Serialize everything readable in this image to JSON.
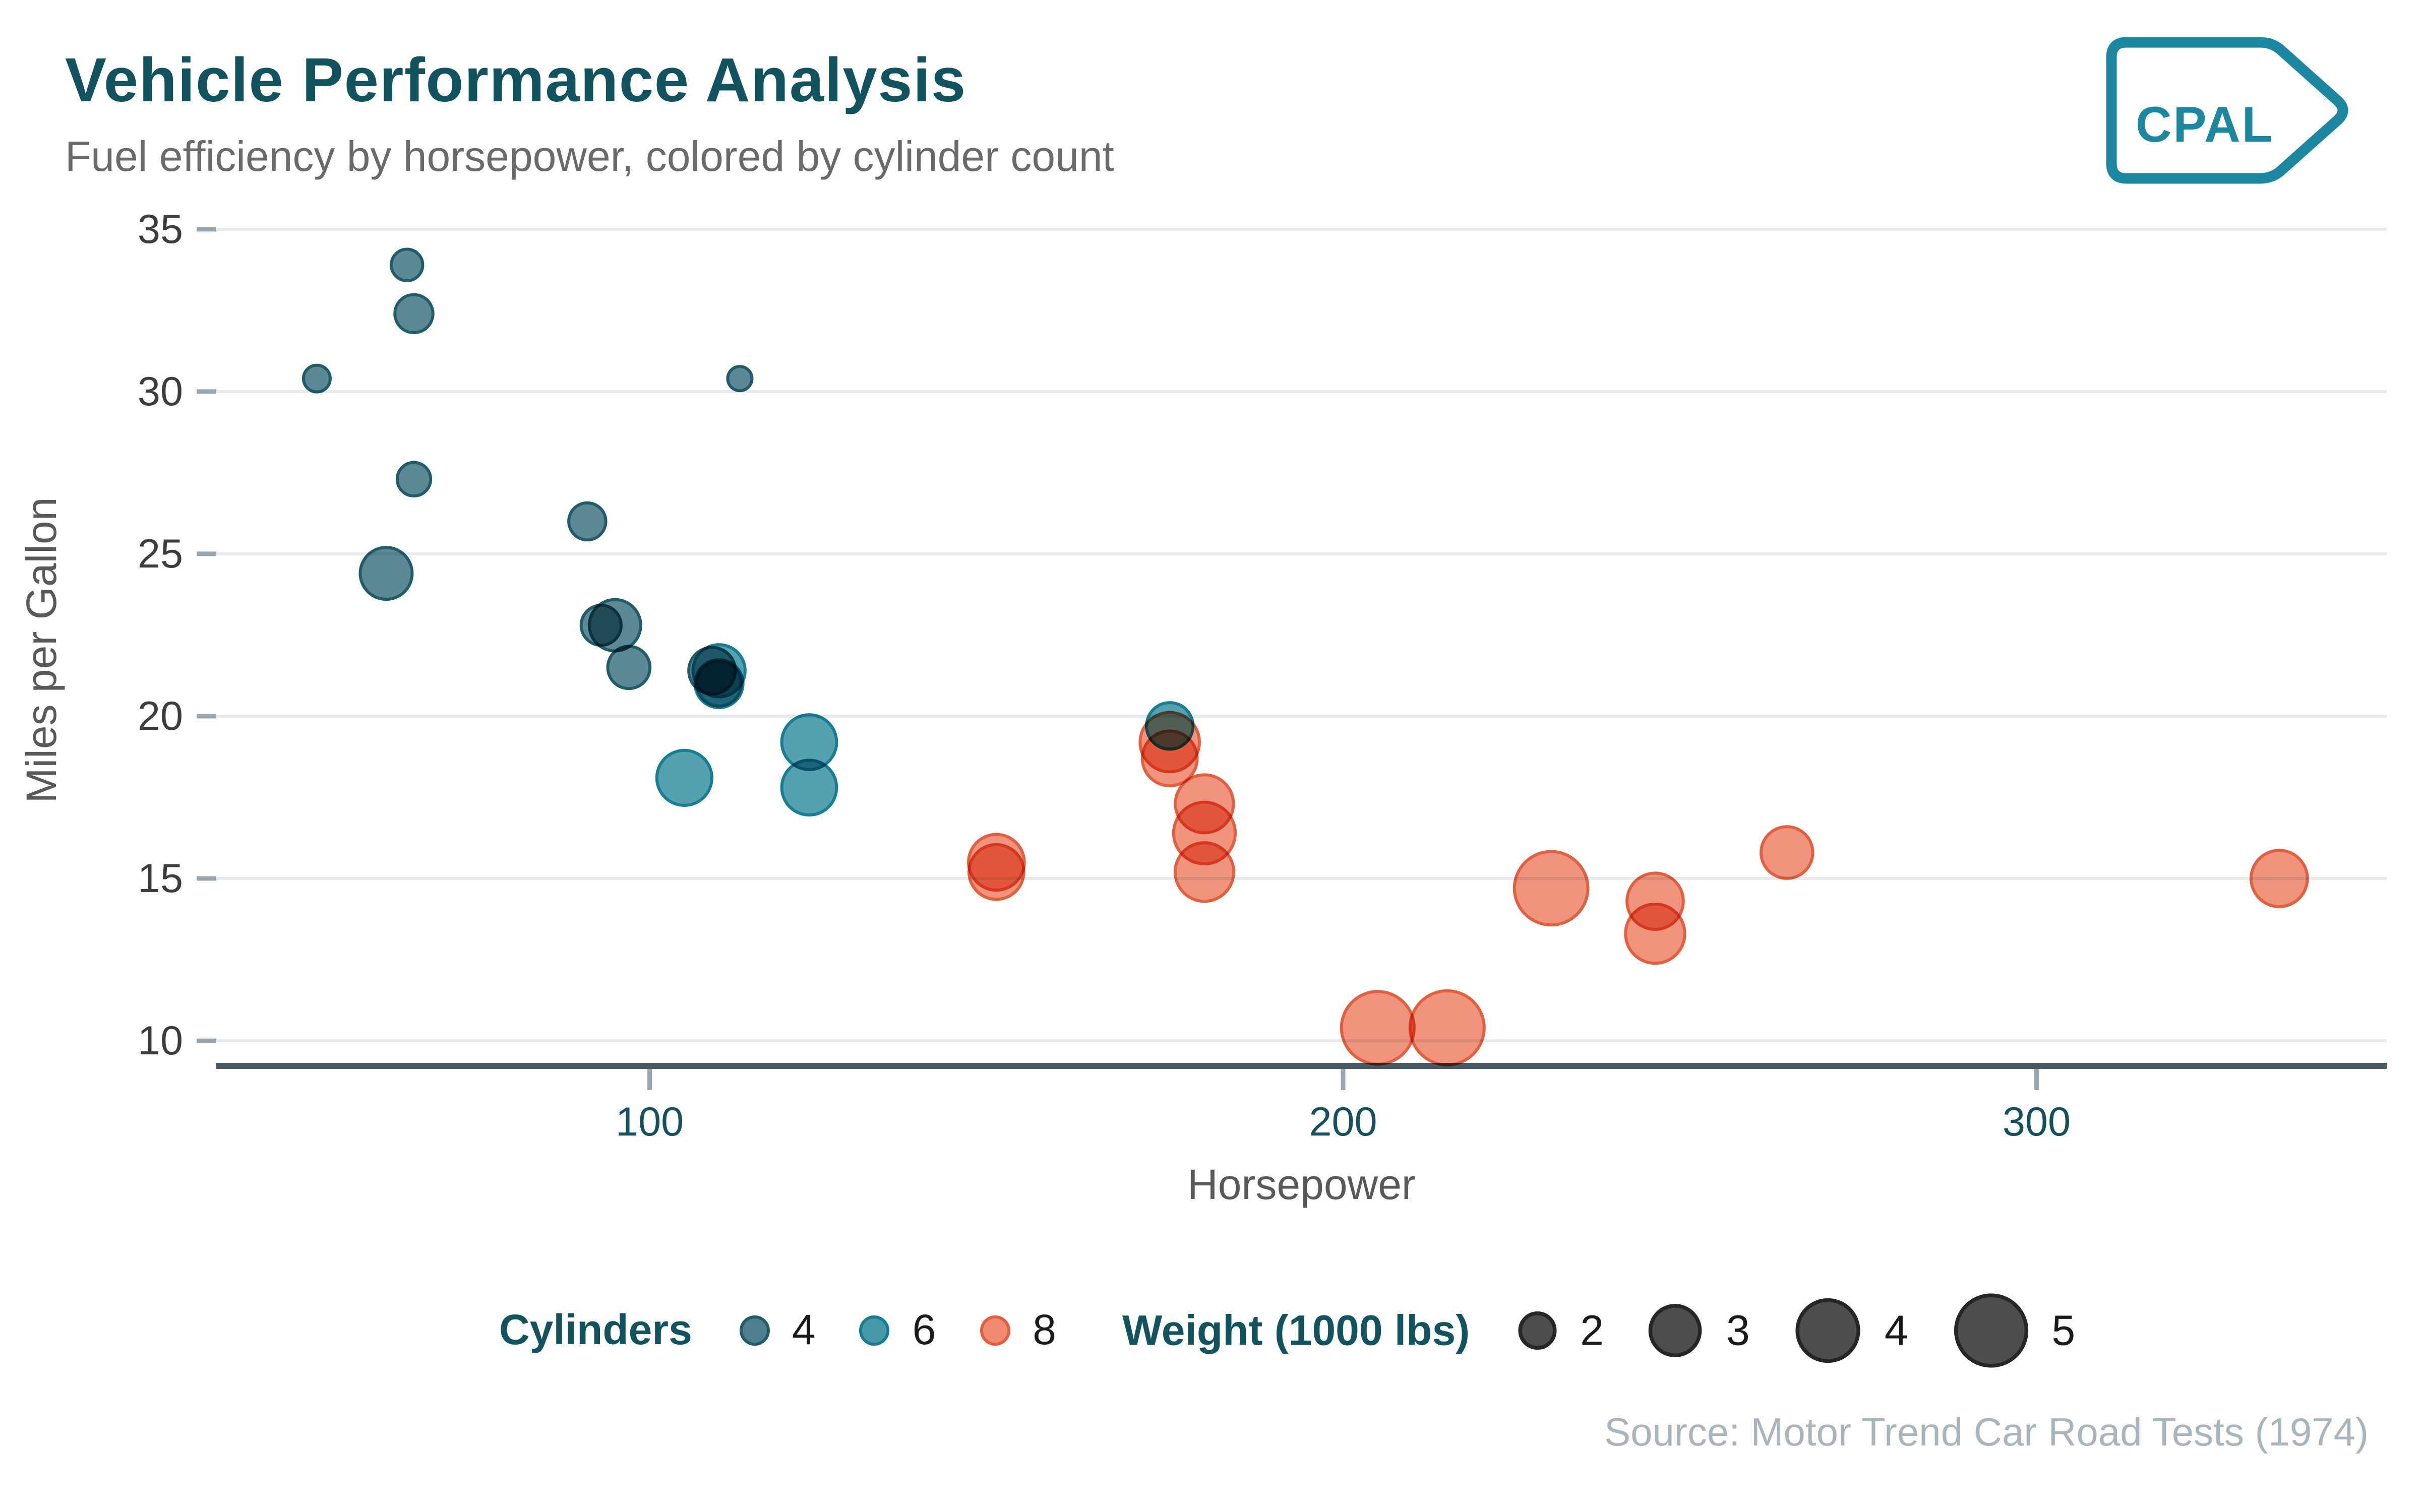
{
  "header": {
    "title": "Vehicle Performance Analysis",
    "subtitle": "Fuel efficiency by horsepower, colored by cylinder count"
  },
  "logo": {
    "text": "CPAL"
  },
  "source": "Source: Motor Trend Car Road Tests (1974)",
  "colors": {
    "title": "#125360",
    "subtitle": "#6A6A6A",
    "axis_title": "#595959",
    "y_tick_text": "#3D3D3D",
    "x_tick_text": "#14505E",
    "tick_mark": "#9AA5AD",
    "gridline": "#E8EBED",
    "axis_line": "#475965",
    "legend_label": "#1A1A1A",
    "legend_title": "#125360",
    "source_text": "#A9B5BB",
    "logo_teal": "#1B87A0",
    "cyl4_fill": "#4E7F8C",
    "cyl4_stroke": "#215C6A",
    "cyl6_fill": "#4699A8",
    "cyl6_stroke": "#177E93",
    "cyl8_fill": "#F08B72",
    "cyl8_stroke": "#E2603F",
    "wt_legend_fill": "#4D4D4D",
    "wt_legend_stroke": "#262626"
  },
  "legend": {
    "cylinders": {
      "title": "Cylinders",
      "items": [
        {
          "label": "4",
          "cyl": 4
        },
        {
          "label": "6",
          "cyl": 6
        },
        {
          "label": "8",
          "cyl": 8
        }
      ]
    },
    "weight": {
      "title": "Weight (1000 lbs)",
      "values": [
        2,
        3,
        4,
        5
      ]
    }
  },
  "size_scale": {
    "domain": [
      1.513,
      5.424
    ],
    "r_min": 8,
    "r_max": 24.5
  },
  "chart_data": {
    "type": "scatter",
    "title": "Vehicle Performance Analysis",
    "xlabel": "Horsepower",
    "ylabel": "Miles per Gallon",
    "x_ticks": [
      100,
      200,
      300
    ],
    "y_ticks": [
      10,
      15,
      20,
      25,
      30,
      35
    ],
    "x_domain": [
      37.5,
      350.5
    ],
    "y_domain": [
      9.225,
      35.075
    ],
    "grid": "horizontal-only",
    "legend_position": "bottom",
    "points": [
      {
        "hp": 110,
        "mpg": 21.0,
        "cyl": 6,
        "wt": 2.62
      },
      {
        "hp": 110,
        "mpg": 21.0,
        "cyl": 6,
        "wt": 2.875
      },
      {
        "hp": 93,
        "mpg": 22.8,
        "cyl": 4,
        "wt": 2.32
      },
      {
        "hp": 110,
        "mpg": 21.4,
        "cyl": 6,
        "wt": 3.215
      },
      {
        "hp": 175,
        "mpg": 18.7,
        "cyl": 8,
        "wt": 3.44
      },
      {
        "hp": 105,
        "mpg": 18.1,
        "cyl": 6,
        "wt": 3.46
      },
      {
        "hp": 245,
        "mpg": 14.3,
        "cyl": 8,
        "wt": 3.57
      },
      {
        "hp": 62,
        "mpg": 24.4,
        "cyl": 4,
        "wt": 3.19
      },
      {
        "hp": 95,
        "mpg": 22.8,
        "cyl": 4,
        "wt": 3.15
      },
      {
        "hp": 123,
        "mpg": 19.2,
        "cyl": 6,
        "wt": 3.44
      },
      {
        "hp": 123,
        "mpg": 17.8,
        "cyl": 6,
        "wt": 3.44
      },
      {
        "hp": 180,
        "mpg": 16.4,
        "cyl": 8,
        "wt": 4.07
      },
      {
        "hp": 180,
        "mpg": 17.3,
        "cyl": 8,
        "wt": 3.73
      },
      {
        "hp": 180,
        "mpg": 15.2,
        "cyl": 8,
        "wt": 3.78
      },
      {
        "hp": 205,
        "mpg": 10.4,
        "cyl": 8,
        "wt": 5.25
      },
      {
        "hp": 215,
        "mpg": 10.4,
        "cyl": 8,
        "wt": 5.424
      },
      {
        "hp": 230,
        "mpg": 14.7,
        "cyl": 8,
        "wt": 5.345
      },
      {
        "hp": 66,
        "mpg": 32.4,
        "cyl": 4,
        "wt": 2.2
      },
      {
        "hp": 52,
        "mpg": 30.4,
        "cyl": 4,
        "wt": 1.615
      },
      {
        "hp": 65,
        "mpg": 33.9,
        "cyl": 4,
        "wt": 1.835
      },
      {
        "hp": 97,
        "mpg": 21.5,
        "cyl": 4,
        "wt": 2.465
      },
      {
        "hp": 150,
        "mpg": 15.5,
        "cyl": 8,
        "wt": 3.52
      },
      {
        "hp": 150,
        "mpg": 15.2,
        "cyl": 8,
        "wt": 3.435
      },
      {
        "hp": 245,
        "mpg": 13.3,
        "cyl": 8,
        "wt": 3.84
      },
      {
        "hp": 175,
        "mpg": 19.2,
        "cyl": 8,
        "wt": 3.845
      },
      {
        "hp": 66,
        "mpg": 27.3,
        "cyl": 4,
        "wt": 1.935
      },
      {
        "hp": 91,
        "mpg": 26.0,
        "cyl": 4,
        "wt": 2.14
      },
      {
        "hp": 113,
        "mpg": 30.4,
        "cyl": 4,
        "wt": 1.513
      },
      {
        "hp": 264,
        "mpg": 15.8,
        "cyl": 8,
        "wt": 3.17
      },
      {
        "hp": 175,
        "mpg": 19.7,
        "cyl": 6,
        "wt": 2.77
      },
      {
        "hp": 335,
        "mpg": 15.0,
        "cyl": 8,
        "wt": 3.57
      },
      {
        "hp": 109,
        "mpg": 21.4,
        "cyl": 4,
        "wt": 2.78
      }
    ]
  }
}
